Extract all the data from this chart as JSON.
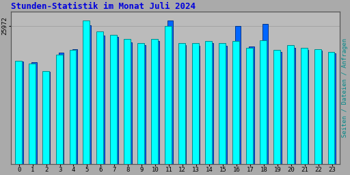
{
  "title": "Stunden-Statistik im Monat Juli 2024",
  "title_color": "#0000dd",
  "ylabel_right": "Seiten / Dateien / Anfragen",
  "ylabel_right_color": "#008888",
  "ytick_label": "25972",
  "background_color": "#aaaaaa",
  "plot_bg_color": "#bbbbbb",
  "hours": [
    0,
    1,
    2,
    3,
    4,
    5,
    6,
    7,
    8,
    9,
    10,
    11,
    12,
    13,
    14,
    15,
    16,
    17,
    18,
    19,
    20,
    21,
    22,
    23
  ],
  "cyan_color": "#00ffff",
  "cyan_edge": "#008888",
  "blue_color": "#0066ff",
  "blue_edge": "#003388",
  "cyan_heights": [
    0.72,
    0.7,
    0.648,
    0.762,
    0.792,
    1.0,
    0.92,
    0.9,
    0.87,
    0.84,
    0.87,
    0.96,
    0.84,
    0.84,
    0.855,
    0.84,
    0.855,
    0.81,
    0.86,
    0.795,
    0.825,
    0.81,
    0.8,
    0.78
  ],
  "blue_heights": [
    0.715,
    0.71,
    0.64,
    0.775,
    0.8,
    0.965,
    0.895,
    0.885,
    0.848,
    0.828,
    0.855,
    1.0,
    0.825,
    0.822,
    0.84,
    0.822,
    0.96,
    0.818,
    0.975,
    0.778,
    0.808,
    0.792,
    0.79,
    0.77
  ],
  "ymax": 1.06,
  "ytick_pos": 0.96
}
